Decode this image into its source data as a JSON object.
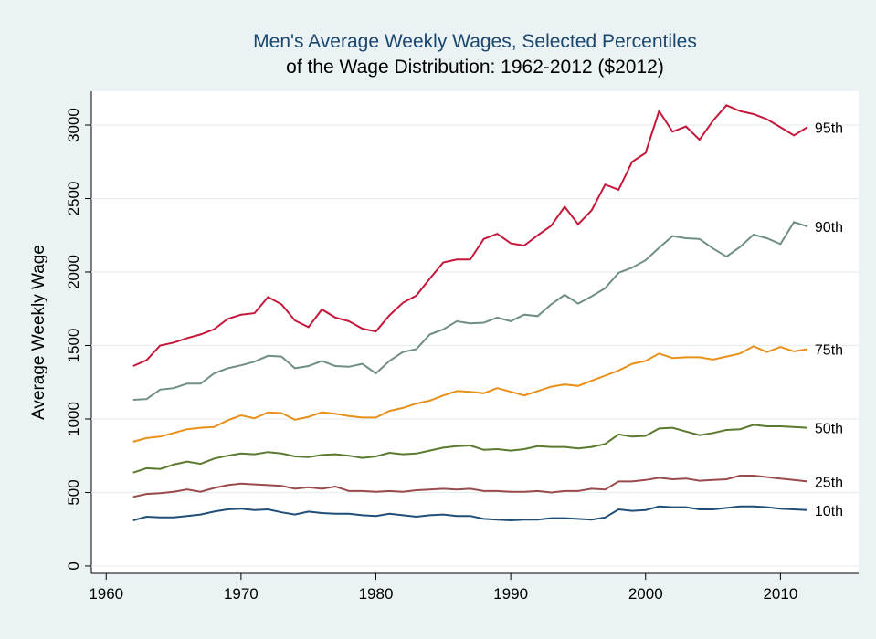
{
  "chart_data": {
    "type": "line",
    "title": "Men's Average Weekly Wages, Selected Percentiles",
    "subtitle": "of the Wage Distribution: 1962-2012 ($2012)",
    "y_label": "Average Weekly Wage",
    "x": [
      1962,
      1963,
      1964,
      1965,
      1966,
      1967,
      1968,
      1969,
      1970,
      1971,
      1972,
      1973,
      1974,
      1975,
      1976,
      1977,
      1978,
      1979,
      1980,
      1981,
      1982,
      1983,
      1984,
      1985,
      1986,
      1987,
      1988,
      1989,
      1990,
      1991,
      1992,
      1993,
      1994,
      1995,
      1996,
      1997,
      1998,
      1999,
      2000,
      2001,
      2002,
      2003,
      2004,
      2005,
      2006,
      2007,
      2008,
      2009,
      2010,
      2011,
      2012
    ],
    "xlim": [
      1958.9,
      2015.8
    ],
    "xticks": [
      1960,
      1970,
      1980,
      1990,
      2000,
      2010
    ],
    "ylim": [
      -50,
      3230
    ],
    "yticks": [
      0,
      500,
      1000,
      1500,
      2000,
      2500,
      3000
    ],
    "grid": true,
    "series": [
      {
        "name": "95th",
        "color": "#c4173a",
        "values": [
          1360,
          1400,
          1500,
          1520,
          1550,
          1575,
          1610,
          1680,
          1710,
          1720,
          1830,
          1780,
          1670,
          1625,
          1745,
          1690,
          1665,
          1615,
          1595,
          1705,
          1790,
          1840,
          1955,
          2065,
          2085,
          2085,
          2225,
          2260,
          2195,
          2180,
          2250,
          2315,
          2445,
          2325,
          2420,
          2595,
          2560,
          2750,
          2810,
          3095,
          2955,
          2990,
          2900,
          3030,
          3135,
          3095,
          3075,
          3040,
          2985,
          2930,
          2985
        ]
      },
      {
        "name": "90th",
        "color": "#6f8f80",
        "values": [
          1130,
          1135,
          1200,
          1210,
          1240,
          1240,
          1310,
          1345,
          1365,
          1390,
          1430,
          1425,
          1345,
          1360,
          1395,
          1360,
          1355,
          1375,
          1310,
          1395,
          1455,
          1475,
          1575,
          1610,
          1665,
          1650,
          1655,
          1690,
          1665,
          1710,
          1700,
          1780,
          1845,
          1785,
          1835,
          1890,
          1995,
          2030,
          2080,
          2165,
          2245,
          2230,
          2225,
          2160,
          2105,
          2170,
          2255,
          2230,
          2190,
          2340,
          2310
        ]
      },
      {
        "name": "75th",
        "color": "#e8901a",
        "values": [
          845,
          870,
          880,
          905,
          930,
          940,
          945,
          990,
          1025,
          1005,
          1045,
          1040,
          995,
          1015,
          1045,
          1035,
          1020,
          1010,
          1010,
          1055,
          1075,
          1105,
          1125,
          1160,
          1190,
          1185,
          1175,
          1210,
          1185,
          1160,
          1190,
          1220,
          1235,
          1225,
          1260,
          1295,
          1330,
          1375,
          1395,
          1445,
          1415,
          1420,
          1420,
          1405,
          1425,
          1445,
          1495,
          1455,
          1490,
          1460,
          1475
        ]
      },
      {
        "name": "50th",
        "color": "#5b7a2e",
        "values": [
          635,
          665,
          660,
          690,
          710,
          695,
          730,
          750,
          765,
          760,
          775,
          765,
          745,
          740,
          755,
          760,
          750,
          735,
          745,
          770,
          760,
          765,
          785,
          805,
          815,
          820,
          790,
          795,
          785,
          795,
          815,
          810,
          810,
          800,
          810,
          830,
          895,
          880,
          885,
          935,
          940,
          915,
          890,
          905,
          925,
          930,
          960,
          950,
          950,
          945,
          940
        ]
      },
      {
        "name": "25th",
        "color": "#9a4a4a",
        "values": [
          470,
          490,
          495,
          505,
          520,
          505,
          530,
          550,
          560,
          555,
          550,
          545,
          525,
          535,
          525,
          540,
          510,
          510,
          505,
          510,
          505,
          515,
          520,
          525,
          520,
          525,
          510,
          510,
          505,
          505,
          510,
          500,
          510,
          510,
          525,
          520,
          575,
          575,
          585,
          600,
          590,
          595,
          580,
          585,
          590,
          615,
          615,
          605,
          595,
          585,
          575
        ]
      },
      {
        "name": "10th",
        "color": "#1f4e79",
        "values": [
          310,
          335,
          330,
          330,
          340,
          350,
          370,
          385,
          390,
          380,
          385,
          365,
          350,
          370,
          360,
          355,
          355,
          345,
          340,
          355,
          345,
          335,
          345,
          350,
          340,
          340,
          320,
          315,
          310,
          315,
          315,
          325,
          325,
          320,
          315,
          330,
          385,
          375,
          380,
          405,
          400,
          400,
          385,
          385,
          395,
          405,
          405,
          400,
          390,
          385,
          380
        ]
      }
    ]
  }
}
